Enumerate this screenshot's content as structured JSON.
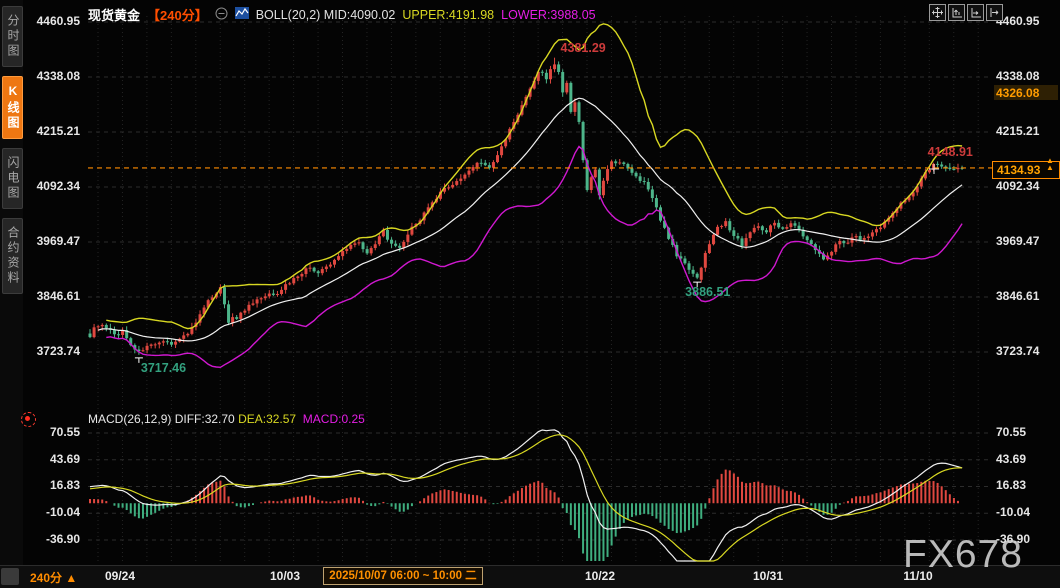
{
  "header": {
    "symbol": "现货黄金",
    "period_tag": "【240分】",
    "boll_label": "BOLL(20,2) MID:4090.02",
    "upper_label": "UPPER:4191.98",
    "lower_label": "LOWER:3988.05"
  },
  "sidebar": {
    "tabs": [
      {
        "label": "分时图",
        "selected": false
      },
      {
        "label": "K线图",
        "selected": true
      },
      {
        "label": "闪电图",
        "selected": false
      },
      {
        "label": "合约资料",
        "selected": false
      }
    ]
  },
  "toolbar": {
    "icons": [
      "crosshair-tool",
      "zoom-scale",
      "pan-scale",
      "shift-chart"
    ]
  },
  "price_axis": {
    "labels": [
      "4460.95",
      "4338.08",
      "4215.21",
      "4092.34",
      "3969.47",
      "3846.61",
      "3723.74"
    ],
    "values": [
      4460.95,
      4338.08,
      4215.21,
      4092.34,
      3969.47,
      3846.61,
      3723.74
    ],
    "prev_ref_label": "4326.08",
    "current_price_label": "4134.93"
  },
  "macd_axis": {
    "labels": [
      "70.55",
      "43.69",
      "16.83",
      "-10.04",
      "-36.90"
    ],
    "values": [
      70.55,
      43.69,
      16.83,
      -10.04,
      -36.9
    ]
  },
  "x_axis": {
    "labels": [
      "09/24",
      "10/03",
      "10/22",
      "10/31",
      "11/10"
    ],
    "selected_range": "2025/10/07 06:00 ~ 10:00 二",
    "period_button": "240分 ▲"
  },
  "macd_legend": {
    "name": "MACD(26,12,9) DIFF:32.70",
    "dea": "DEA:32.57",
    "macd": "MACD:0.25"
  },
  "watermark": "FX678",
  "annotations": [
    {
      "label": "4381.29",
      "price": 4381.29,
      "candle": 114,
      "kind": "high",
      "color": "#cd3b3b"
    },
    {
      "label": "3717.46",
      "price": 3717.46,
      "candle": 12,
      "kind": "low",
      "color": "#33a17f"
    },
    {
      "label": "3886.51",
      "price": 3886.51,
      "candle": 149,
      "kind": "low",
      "color": "#33a17f"
    },
    {
      "label": "4148.91",
      "price": 4148.91,
      "candle": 209,
      "kind": "high",
      "color": "#cd3b3b"
    }
  ],
  "chart_data": {
    "type": "candlestick",
    "title": "现货黄金 240分 K线图 BOLL(20,2) + MACD(26,12,9)",
    "period_minutes": 240,
    "num_candles": 215,
    "price_ticks": [
      4460.95,
      4338.08,
      4215.21,
      4092.34,
      3969.47,
      3846.61,
      3723.74
    ],
    "x_ticks": [
      "09/24",
      "10/03",
      "10/22",
      "10/31",
      "11/10"
    ],
    "ylim": [
      3680,
      4480
    ],
    "key_points": {
      "period_high": 4381.29,
      "period_low": 3717.46,
      "swing_low": 3886.51,
      "recent_high": 4148.91,
      "last_price": 4134.93,
      "reference_level": 4326.08
    },
    "boll": {
      "period": 20,
      "k": 2,
      "mid": 4090.02,
      "upper": 4191.98,
      "lower": 3988.05
    },
    "macd": {
      "fast": 26,
      "mid": 12,
      "signal": 9,
      "diff": 32.7,
      "dea": 32.57,
      "macd": 0.25,
      "ticks": [
        70.55,
        43.69,
        16.83,
        -10.04,
        -36.9
      ]
    },
    "colors": {
      "up": "#e04840",
      "down": "#4db58a",
      "boll_upper": "#d8d822",
      "boll_mid": "#f0f0f0",
      "boll_lower": "#d018d0",
      "hist_pos": "#e04840",
      "hist_neg": "#3fae7f",
      "price_line": "#ff8c00"
    },
    "close_anchors": [
      [
        0,
        3762
      ],
      [
        2,
        3786
      ],
      [
        4,
        3775
      ],
      [
        6,
        3762
      ],
      [
        8,
        3770
      ],
      [
        10,
        3742
      ],
      [
        12,
        3722
      ],
      [
        14,
        3740
      ],
      [
        16,
        3736
      ],
      [
        18,
        3744
      ],
      [
        20,
        3745
      ],
      [
        22,
        3752
      ],
      [
        24,
        3768
      ],
      [
        26,
        3790
      ],
      [
        28,
        3820
      ],
      [
        30,
        3850
      ],
      [
        32,
        3866
      ],
      [
        33,
        3830
      ],
      [
        34,
        3792
      ],
      [
        35,
        3805
      ],
      [
        36,
        3800
      ],
      [
        38,
        3818
      ],
      [
        40,
        3832
      ],
      [
        42,
        3844
      ],
      [
        44,
        3850
      ],
      [
        46,
        3858
      ],
      [
        48,
        3872
      ],
      [
        50,
        3888
      ],
      [
        52,
        3902
      ],
      [
        54,
        3912
      ],
      [
        56,
        3900
      ],
      [
        58,
        3912
      ],
      [
        60,
        3928
      ],
      [
        62,
        3950
      ],
      [
        64,
        3965
      ],
      [
        66,
        3968
      ],
      [
        68,
        3948
      ],
      [
        70,
        3962
      ],
      [
        72,
        3995
      ],
      [
        74,
        3962
      ],
      [
        76,
        3952
      ],
      [
        78,
        3988
      ],
      [
        80,
        4012
      ],
      [
        82,
        4032
      ],
      [
        84,
        4055
      ],
      [
        86,
        4078
      ],
      [
        88,
        4095
      ],
      [
        90,
        4105
      ],
      [
        92,
        4118
      ],
      [
        94,
        4140
      ],
      [
        96,
        4150
      ],
      [
        98,
        4132
      ],
      [
        100,
        4162
      ],
      [
        102,
        4200
      ],
      [
        104,
        4238
      ],
      [
        106,
        4272
      ],
      [
        108,
        4312
      ],
      [
        110,
        4350
      ],
      [
        112,
        4338
      ],
      [
        114,
        4368
      ],
      [
        115,
        4352
      ],
      [
        116,
        4300
      ],
      [
        117,
        4322
      ],
      [
        118,
        4258
      ],
      [
        119,
        4278
      ],
      [
        120,
        4242
      ],
      [
        121,
        4148
      ],
      [
        122,
        4088
      ],
      [
        123,
        4112
      ],
      [
        124,
        4132
      ],
      [
        125,
        4078
      ],
      [
        126,
        4102
      ],
      [
        127,
        4136
      ],
      [
        128,
        4152
      ],
      [
        130,
        4146
      ],
      [
        132,
        4132
      ],
      [
        134,
        4112
      ],
      [
        136,
        4100
      ],
      [
        138,
        4072
      ],
      [
        140,
        4020
      ],
      [
        142,
        3975
      ],
      [
        144,
        3942
      ],
      [
        146,
        3918
      ],
      [
        148,
        3902
      ],
      [
        149,
        3888
      ],
      [
        150,
        3912
      ],
      [
        151,
        3942
      ],
      [
        152,
        3968
      ],
      [
        154,
        4008
      ],
      [
        156,
        4012
      ],
      [
        158,
        3985
      ],
      [
        160,
        3965
      ],
      [
        162,
        3992
      ],
      [
        164,
        4005
      ],
      [
        166,
        3996
      ],
      [
        168,
        4010
      ],
      [
        170,
        4002
      ],
      [
        172,
        4012
      ],
      [
        174,
        3995
      ],
      [
        176,
        3972
      ],
      [
        178,
        3952
      ],
      [
        180,
        3935
      ],
      [
        182,
        3952
      ],
      [
        184,
        3972
      ],
      [
        186,
        3970
      ],
      [
        188,
        3982
      ],
      [
        190,
        3976
      ],
      [
        192,
        3992
      ],
      [
        194,
        4005
      ],
      [
        196,
        4022
      ],
      [
        198,
        4045
      ],
      [
        200,
        4062
      ],
      [
        202,
        4085
      ],
      [
        204,
        4112
      ],
      [
        206,
        4135
      ],
      [
        208,
        4145
      ],
      [
        210,
        4132
      ],
      [
        212,
        4128
      ],
      [
        214,
        4134.93
      ]
    ]
  }
}
